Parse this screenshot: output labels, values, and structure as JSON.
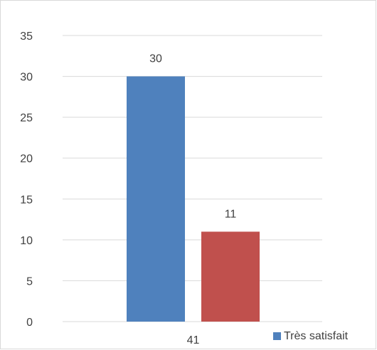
{
  "chart_data": {
    "type": "bar",
    "categories": [
      "41"
    ],
    "series": [
      {
        "name": "Très satisfait",
        "values": [
          30
        ],
        "color": "#4f81bd"
      },
      {
        "name": "",
        "values": [
          11
        ],
        "color": "#c0504d"
      }
    ],
    "ylim": [
      0,
      35
    ],
    "yticks": [
      0,
      5,
      10,
      15,
      20,
      25,
      30,
      35
    ],
    "grid": true,
    "legend": {
      "position": "bottom-right",
      "entries": [
        "Très satisfait"
      ]
    }
  }
}
